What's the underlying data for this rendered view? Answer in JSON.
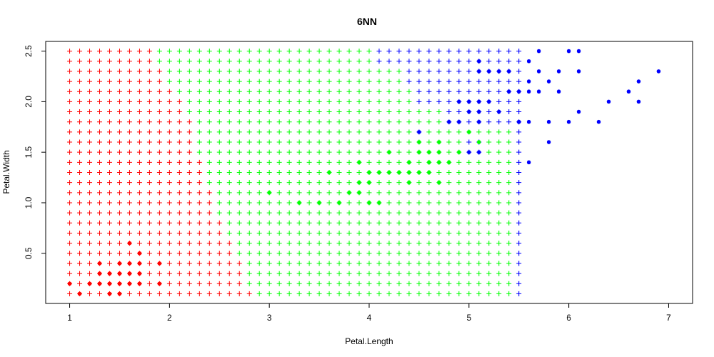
{
  "chart_data": {
    "type": "scatter",
    "title": "6NN",
    "xlabel": "Petal.Length",
    "ylabel": "Petal.Width",
    "xlim": [
      0.76,
      7.24
    ],
    "ylim": [
      0.004,
      2.596
    ],
    "xticks": [
      1,
      2,
      3,
      4,
      5,
      6,
      7
    ],
    "xtick_labels": [
      "1",
      "2",
      "3",
      "4",
      "5",
      "6",
      "7"
    ],
    "yticks": [
      0.5,
      1.0,
      1.5,
      2.0,
      2.5
    ],
    "ytick_labels": [
      "0.5",
      "1.0",
      "1.5",
      "2.0",
      "2.5"
    ],
    "grid": false,
    "legend": "none",
    "colors": {
      "setosa": "#ff0000",
      "versicolor": "#00ff00",
      "virginica": "#0000ff"
    },
    "grid_points": {
      "marker": "plus",
      "x_start": 1.0,
      "x_step": 0.1,
      "x_count": 46,
      "y_start": 0.1,
      "y_step": 0.1,
      "y_count": 25,
      "row_y": [
        0.1,
        0.2,
        0.3,
        0.4,
        0.5,
        0.6,
        0.7,
        0.8,
        0.9,
        1.0,
        1.1,
        1.2,
        1.3,
        1.4,
        1.5,
        1.6,
        1.7,
        1.8,
        1.9,
        2.0,
        2.1,
        2.2,
        2.3,
        2.4,
        2.5
      ],
      "setosa_max_x": [
        2.8,
        2.7,
        2.7,
        2.7,
        2.6,
        2.6,
        2.5,
        2.5,
        2.4,
        2.4,
        2.4,
        2.3,
        2.3,
        2.3,
        2.2,
        2.2,
        2.2,
        2.2,
        2.1,
        2.1,
        2.0,
        1.9,
        1.9,
        1.8,
        1.8
      ],
      "versicolor_max_x": [
        5.5,
        5.4,
        5.4,
        5.4,
        5.4,
        5.4,
        5.4,
        5.4,
        5.4,
        5.4,
        5.4,
        5.4,
        5.4,
        5.4,
        5.4,
        5.4,
        5.4,
        4.7,
        4.7,
        4.4,
        4.4,
        4.3,
        4.3,
        4.0,
        4.0
      ],
      "blue_patches": [
        {
          "y": 0.1,
          "x": [
            5.5
          ]
        },
        {
          "y": 0.2,
          "x": [
            5.5
          ]
        },
        {
          "y": 0.3,
          "x": [
            5.5
          ]
        },
        {
          "y": 0.4,
          "x": [
            5.5
          ]
        },
        {
          "y": 0.5,
          "x": [
            5.5
          ]
        },
        {
          "y": 0.6,
          "x": [
            5.5
          ]
        },
        {
          "y": 0.7,
          "x": [
            5.5
          ]
        },
        {
          "y": 0.8,
          "x": [
            5.5
          ]
        },
        {
          "y": 0.9,
          "x": [
            5.5
          ]
        },
        {
          "y": 1.0,
          "x": [
            5.5
          ]
        },
        {
          "y": 1.1,
          "x": [
            5.5
          ]
        },
        {
          "y": 1.2,
          "x": [
            5.5
          ]
        },
        {
          "y": 1.3,
          "x": [
            5.5
          ]
        },
        {
          "y": 1.4,
          "x": [
            5.5
          ]
        },
        {
          "y": 1.5,
          "x": [
            5.0,
            5.1
          ]
        },
        {
          "y": 1.6,
          "x": [
            5.0,
            5.1
          ]
        },
        {
          "y": 1.7,
          "x": [
            4.5
          ]
        }
      ]
    },
    "series": [
      {
        "color": "#ff0000",
        "marker": "dot",
        "x": [
          1.0,
          1.1,
          1.2,
          1.3,
          1.3,
          1.3,
          1.4,
          1.4,
          1.4,
          1.5,
          1.5,
          1.5,
          1.5,
          1.6,
          1.6,
          1.6,
          1.6,
          1.7,
          1.7,
          1.7,
          1.7,
          1.9,
          1.9
        ],
        "y": [
          0.2,
          0.1,
          0.2,
          0.2,
          0.3,
          0.4,
          0.1,
          0.2,
          0.3,
          0.1,
          0.2,
          0.3,
          0.4,
          0.2,
          0.3,
          0.4,
          0.6,
          0.2,
          0.3,
          0.4,
          0.5,
          0.2,
          0.4
        ]
      },
      {
        "color": "#00ff00",
        "marker": "dot",
        "x": [
          3.0,
          3.3,
          3.5,
          3.6,
          3.7,
          3.8,
          3.9,
          3.9,
          3.9,
          4.0,
          4.0,
          4.0,
          4.1,
          4.1,
          4.2,
          4.2,
          4.3,
          4.4,
          4.4,
          4.4,
          4.5,
          4.5,
          4.5,
          4.6,
          4.6,
          4.6,
          4.7,
          4.7,
          4.7,
          4.7,
          4.8,
          4.9,
          5.0,
          5.1
        ],
        "y": [
          1.1,
          1.0,
          1.0,
          1.3,
          1.0,
          1.1,
          1.1,
          1.2,
          1.4,
          1.0,
          1.2,
          1.3,
          1.0,
          1.3,
          1.3,
          1.5,
          1.3,
          1.2,
          1.3,
          1.4,
          1.3,
          1.5,
          1.6,
          1.3,
          1.4,
          1.5,
          1.2,
          1.4,
          1.5,
          1.6,
          1.4,
          1.5,
          1.7,
          1.6
        ]
      },
      {
        "color": "#0000ff",
        "marker": "dot",
        "x": [
          4.5,
          4.8,
          4.9,
          4.9,
          5.0,
          5.0,
          5.0,
          5.1,
          5.1,
          5.1,
          5.1,
          5.1,
          5.1,
          5.2,
          5.2,
          5.3,
          5.3,
          5.4,
          5.4,
          5.5,
          5.5,
          5.5,
          5.6,
          5.6,
          5.6,
          5.6,
          5.6,
          5.7,
          5.7,
          5.7,
          5.8,
          5.8,
          5.8,
          5.9,
          5.9,
          6.0,
          6.0,
          6.1,
          6.1,
          6.1,
          6.3,
          6.4,
          6.6,
          6.7,
          6.7,
          6.9
        ],
        "y": [
          1.7,
          1.8,
          1.8,
          2.0,
          1.5,
          1.9,
          2.0,
          1.5,
          1.8,
          1.9,
          2.0,
          2.3,
          2.4,
          2.0,
          2.3,
          1.9,
          2.3,
          2.1,
          2.3,
          1.8,
          2.1,
          1.8,
          1.4,
          1.8,
          2.1,
          2.2,
          2.4,
          2.1,
          2.3,
          2.5,
          1.6,
          1.8,
          2.2,
          2.1,
          2.3,
          1.8,
          2.5,
          1.9,
          2.3,
          2.5,
          1.8,
          2.0,
          2.1,
          2.0,
          2.2,
          2.3
        ]
      }
    ]
  }
}
